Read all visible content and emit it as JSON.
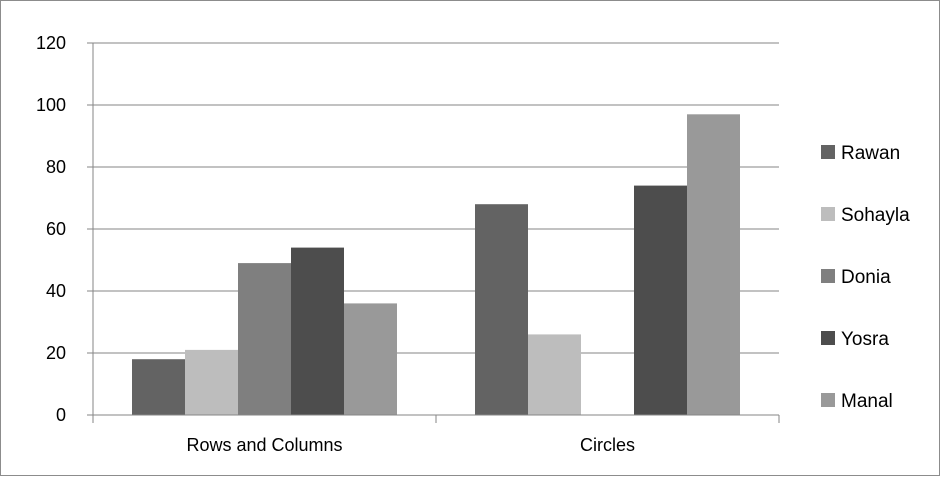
{
  "chart_data": {
    "type": "bar",
    "title": "",
    "xlabel": "",
    "ylabel": "",
    "categories": [
      "Rows and Columns",
      "Circles"
    ],
    "series": [
      {
        "name": "Rawan",
        "values": [
          18,
          68
        ],
        "color": "#636363"
      },
      {
        "name": "Sohayla",
        "values": [
          21,
          26
        ],
        "color": "#bdbdbd"
      },
      {
        "name": "Donia",
        "values": [
          49,
          0
        ],
        "color": "#7f7f7f"
      },
      {
        "name": "Yosra",
        "values": [
          54,
          74
        ],
        "color": "#4d4d4d"
      },
      {
        "name": "Manal",
        "values": [
          36,
          97
        ],
        "color": "#999999"
      }
    ],
    "ylim": [
      0,
      120
    ],
    "yticks": [
      "0",
      "20",
      "40",
      "60",
      "80",
      "100",
      "120"
    ],
    "grid": true,
    "legend_position": "right"
  }
}
